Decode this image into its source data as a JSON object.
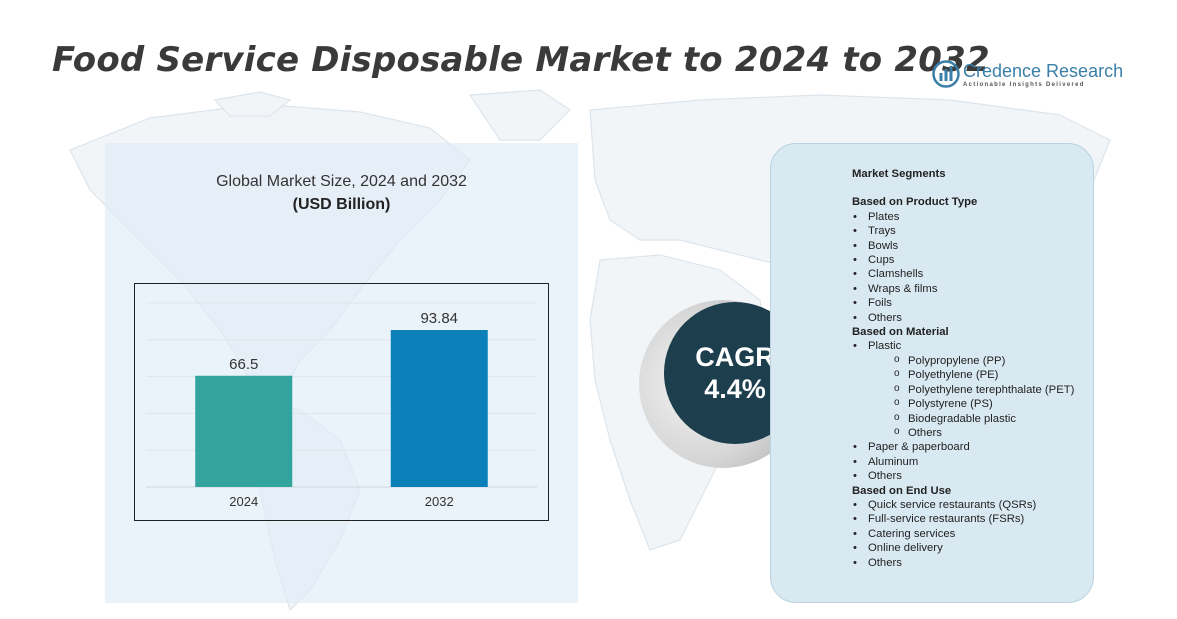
{
  "title": "Food Service Disposable Market to 2024 to 2032",
  "brand": {
    "name": "Credence Research",
    "tagline": "Actionable Insights Delivered",
    "color": "#3a7fa8"
  },
  "chart_heading": "Global Market Size,  2024 and 2032",
  "chart_unit": "(USD Billion)",
  "chart_data": {
    "type": "bar",
    "title": "Global Market Size,  2024 and 2032",
    "subtitle": "(USD Billion)",
    "categories": [
      "2024",
      "2032"
    ],
    "values": [
      66.5,
      93.84
    ],
    "data_labels": [
      "66.5",
      "93.84"
    ],
    "colors": [
      "#33a39e",
      "#0a7fb8"
    ],
    "ylim": [
      0,
      110
    ],
    "grid": true,
    "xlabel": "",
    "ylabel": ""
  },
  "cagr": {
    "label": "CAGR",
    "value": "4.4%",
    "color": "#1d3e4c"
  },
  "segments": {
    "title": "Market Segments",
    "product_type": {
      "title": "Based on Product Type",
      "items": [
        "Plates",
        "Trays",
        "Bowls",
        "Cups",
        "Clamshells",
        "Wraps & films",
        "Foils",
        "Others"
      ]
    },
    "material": {
      "title": "Based on Material",
      "plastic": "Plastic",
      "plastic_sub": [
        "Polypropylene (PP)",
        "Polyethylene (PE)",
        "Polyethylene terephthalate (PET)",
        "Polystyrene (PS)",
        "Biodegradable plastic",
        "Others"
      ],
      "items": [
        "Paper & paperboard",
        "Aluminum",
        "Others"
      ]
    },
    "end_use": {
      "title": "Based on End Use",
      "items": [
        "Quick service restaurants (QSRs)",
        "Full-service restaurants (FSRs)",
        "Catering services",
        "Online delivery",
        "Others"
      ]
    }
  }
}
